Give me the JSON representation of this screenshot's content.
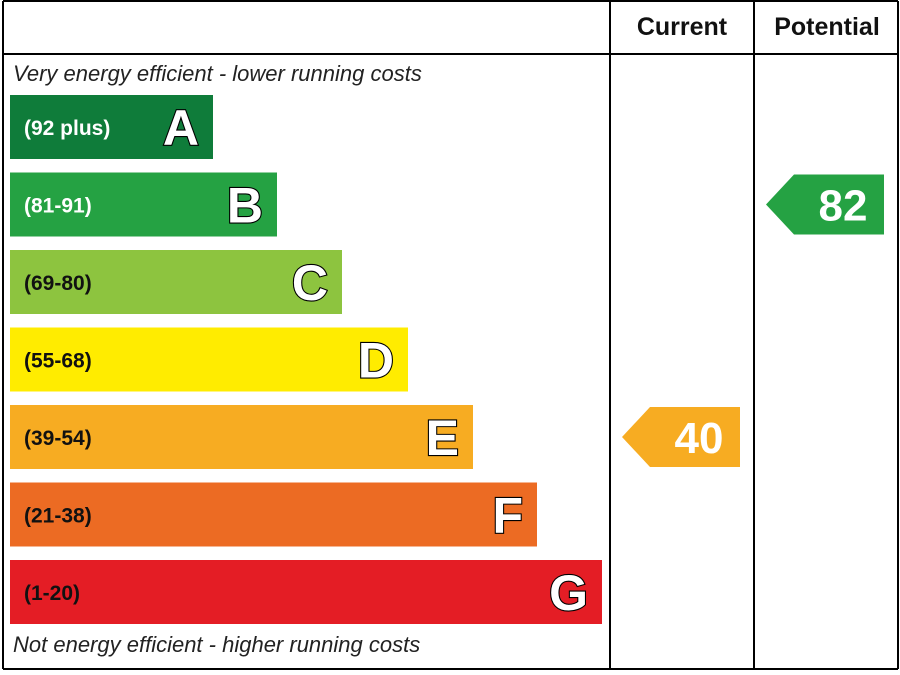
{
  "chart_data": {
    "type": "bar",
    "columns": {
      "current": "Current",
      "potential": "Potential"
    },
    "top_note": "Very energy efficient - lower running costs",
    "bottom_note": "Not energy efficient - higher running costs",
    "bands": [
      {
        "letter": "A",
        "range": "(92 plus)",
        "color": "#0f7c3a",
        "range_color": "#ffffff"
      },
      {
        "letter": "B",
        "range": "(81-91)",
        "color": "#25a243",
        "range_color": "#ffffff"
      },
      {
        "letter": "C",
        "range": "(69-80)",
        "color": "#8dc43f",
        "range_color": "#111111"
      },
      {
        "letter": "D",
        "range": "(55-68)",
        "color": "#ffec00",
        "range_color": "#111111"
      },
      {
        "letter": "E",
        "range": "(39-54)",
        "color": "#f7ac22",
        "range_color": "#111111"
      },
      {
        "letter": "F",
        "range": "(21-38)",
        "color": "#ec6b23",
        "range_color": "#111111"
      },
      {
        "letter": "G",
        "range": "(1-20)",
        "color": "#e41d25",
        "range_color": "#111111"
      }
    ],
    "current": {
      "value": 40,
      "band": "E",
      "color": "#f7ac22"
    },
    "potential": {
      "value": 82,
      "band": "B",
      "color": "#25a243"
    }
  }
}
